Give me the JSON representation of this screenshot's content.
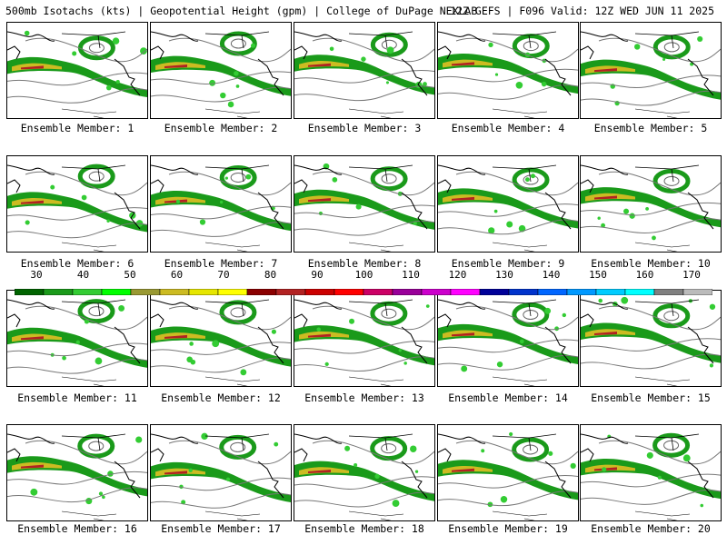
{
  "header": {
    "left": "500mb Isotachs (kts) | Geopotential Height (gpm) | College of DuPage NEXLAB",
    "right": "12Z GEFS | F096 Valid: 12Z WED JUN 11 2025"
  },
  "panels": [
    {
      "caption": "Ensemble Member: 1"
    },
    {
      "caption": "Ensemble Member: 2"
    },
    {
      "caption": "Ensemble Member: 3"
    },
    {
      "caption": "Ensemble Member: 4"
    },
    {
      "caption": "Ensemble Member: 5"
    },
    {
      "caption": "Ensemble Member: 6"
    },
    {
      "caption": "Ensemble Member: 7"
    },
    {
      "caption": "Ensemble Member: 8"
    },
    {
      "caption": "Ensemble Member: 9"
    },
    {
      "caption": "Ensemble Member: 10"
    },
    {
      "caption": "Ensemble Member: 11"
    },
    {
      "caption": "Ensemble Member: 12"
    },
    {
      "caption": "Ensemble Member: 13"
    },
    {
      "caption": "Ensemble Member: 14"
    },
    {
      "caption": "Ensemble Member: 15"
    },
    {
      "caption": "Ensemble Member: 16"
    },
    {
      "caption": "Ensemble Member: 17"
    },
    {
      "caption": "Ensemble Member: 18"
    },
    {
      "caption": "Ensemble Member: 19"
    },
    {
      "caption": "Ensemble Member: 20"
    }
  ],
  "colorbar": {
    "labels": [
      "30",
      "40",
      "50",
      "60",
      "70",
      "80",
      "90",
      "100",
      "110",
      "120",
      "130",
      "140",
      "150",
      "160",
      "170"
    ],
    "colors": [
      "#006400",
      "#1a9a1a",
      "#33cc33",
      "#00ff00",
      "#999933",
      "#ccbb22",
      "#e6e600",
      "#ffff00",
      "#8b0000",
      "#b22222",
      "#cc0000",
      "#ff0000",
      "#cc0066",
      "#990099",
      "#cc00cc",
      "#ff00ff",
      "#000099",
      "#0033cc",
      "#0066ff",
      "#0099ff",
      "#00ccff",
      "#00ffff",
      "#808080",
      "#bbbbbb"
    ]
  }
}
